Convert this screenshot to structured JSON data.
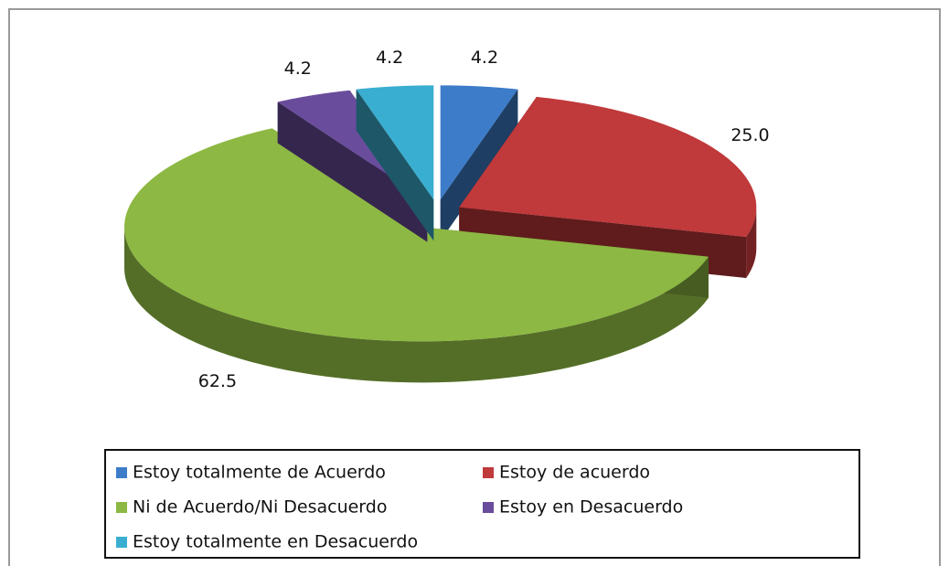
{
  "chart_data": {
    "type": "pie",
    "categories": [
      "Estoy totalmente de Acuerdo",
      "Estoy de acuerdo",
      "Ni de Acuerdo/Ni Desacuerdo",
      "Estoy en Desacuerdo",
      "Estoy totalmente en Desacuerdo"
    ],
    "values": [
      4.2,
      25.0,
      62.5,
      4.2,
      4.2
    ],
    "value_labels": [
      "4.2",
      "25.0",
      "62.5",
      "4.2",
      "4.2"
    ],
    "colors": [
      "#3d7cc9",
      "#c0393b",
      "#8db843",
      "#6a4c9c",
      "#3aaed0"
    ],
    "legend": "bottom"
  }
}
